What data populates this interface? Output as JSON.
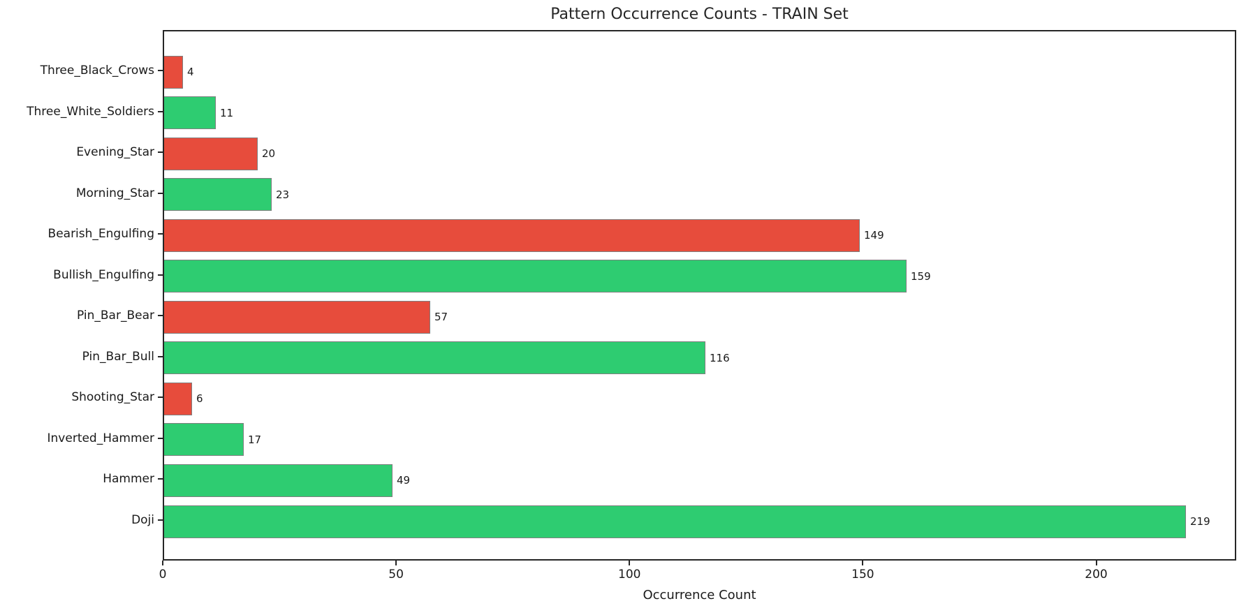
{
  "chart_data": {
    "type": "bar",
    "orientation": "horizontal",
    "title": "Pattern Occurrence Counts - TRAIN Set",
    "xlabel": "Occurrence Count",
    "ylabel": "",
    "categories": [
      "Three_Black_Crows",
      "Three_White_Soldiers",
      "Evening_Star",
      "Morning_Star",
      "Bearish_Engulfing",
      "Bullish_Engulfing",
      "Pin_Bar_Bear",
      "Pin_Bar_Bull",
      "Shooting_Star",
      "Inverted_Hammer",
      "Hammer",
      "Doji"
    ],
    "values": [
      4,
      11,
      20,
      23,
      149,
      159,
      57,
      116,
      6,
      17,
      49,
      219
    ],
    "bar_colors": [
      "#e74c3c",
      "#2ecc71",
      "#e74c3c",
      "#2ecc71",
      "#e74c3c",
      "#2ecc71",
      "#e74c3c",
      "#2ecc71",
      "#e74c3c",
      "#2ecc71",
      "#2ecc71",
      "#2ecc71"
    ],
    "bar_edge_color": "#7f7f7f",
    "xlim": [
      0,
      230
    ],
    "xticks": [
      0,
      50,
      100,
      150,
      200
    ],
    "grid": false,
    "legend_position": "none"
  }
}
